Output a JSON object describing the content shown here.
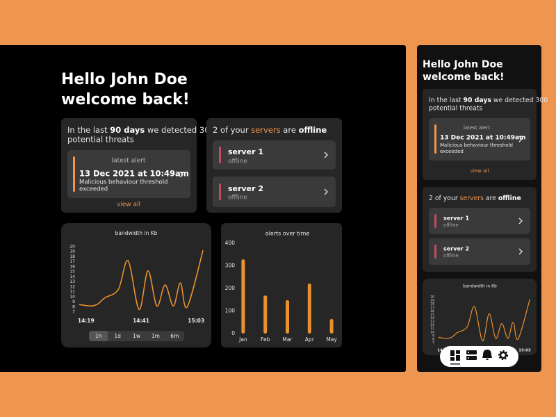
{
  "greeting": [
    "Hello John Doe",
    "welcome back!"
  ],
  "threats_card": {
    "line1": [
      "In the last ",
      "90 days",
      " we detected 300"
    ],
    "line2": "potential threats",
    "alert": {
      "label": "latest alert",
      "date": "13 Dec 2021 at 10:49am",
      "message": [
        "Malicious behaviour threshold",
        "exceeded"
      ]
    },
    "link": "view all"
  },
  "servers_card": {
    "heading": [
      "2 of your ",
      "servers",
      " are ",
      "offline"
    ],
    "servers": [
      {
        "name": "server 1",
        "status": "offline"
      },
      {
        "name": "server 2",
        "status": "offline"
      }
    ]
  },
  "time_ranges": {
    "options": [
      "1h",
      "1d",
      "1w",
      "1m",
      "6m"
    ],
    "selected": 0
  },
  "chart_data": [
    {
      "type": "line",
      "title": "bandwidth in Kb",
      "x": [
        -2.75,
        1.9,
        4.7,
        7.4,
        12.9,
        16.8,
        21.2,
        24.75,
        28.3,
        31.6,
        34.9,
        37.7,
        40.4,
        46.75
      ],
      "values": [
        8.5,
        8.2,
        8.6,
        9.8,
        11.5,
        17.2,
        7.5,
        15.2,
        8.2,
        12.4,
        8.2,
        12.8,
        8.0,
        19.3
      ],
      "color": "#e8912f",
      "xlim": [
        -3,
        47
      ],
      "xticks": [
        {
          "value": 0,
          "label": "14:19"
        },
        {
          "value": 22,
          "label": "14:41"
        },
        {
          "value": 44,
          "label": "15:03"
        }
      ],
      "ylim": [
        7,
        20
      ],
      "yticks": [
        20,
        19,
        18,
        17,
        16,
        15,
        14,
        13,
        12,
        11,
        10,
        9,
        8,
        7
      ]
    },
    {
      "type": "bar",
      "title": "alerts over time",
      "categories": [
        "Jan",
        "Feb",
        "Mar",
        "Apr",
        "May"
      ],
      "values": [
        329,
        169,
        148,
        222,
        65
      ],
      "color": "#e8912f",
      "ylim": [
        0,
        400
      ],
      "yticks": [
        0,
        100,
        200,
        300,
        400
      ]
    }
  ]
}
